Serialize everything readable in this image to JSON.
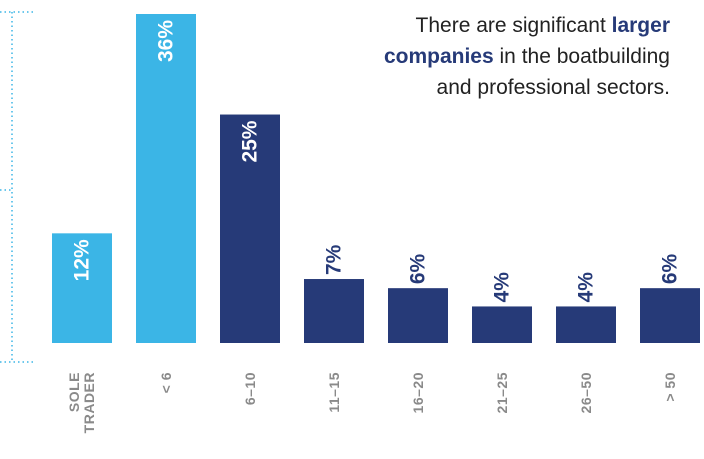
{
  "chart_data": {
    "type": "bar",
    "categories": [
      "SOLE TRADER",
      "< 6",
      "6–10",
      "11–15",
      "16–20",
      "21–25",
      "26–50",
      "> 50"
    ],
    "values": [
      12,
      36,
      25,
      7,
      6,
      4,
      4,
      6
    ],
    "value_labels": [
      "12%",
      "36%",
      "25%",
      "7%",
      "6%",
      "4%",
      "4%",
      "6%"
    ],
    "colors": [
      "#3bb5e6",
      "#3bb5e6",
      "#263a78",
      "#263a78",
      "#263a78",
      "#263a78",
      "#263a78",
      "#263a78"
    ],
    "annotation": {
      "before": "There are significant",
      "bold": "larger companies",
      "after": "in the boatbuilding and professional sectors."
    }
  }
}
